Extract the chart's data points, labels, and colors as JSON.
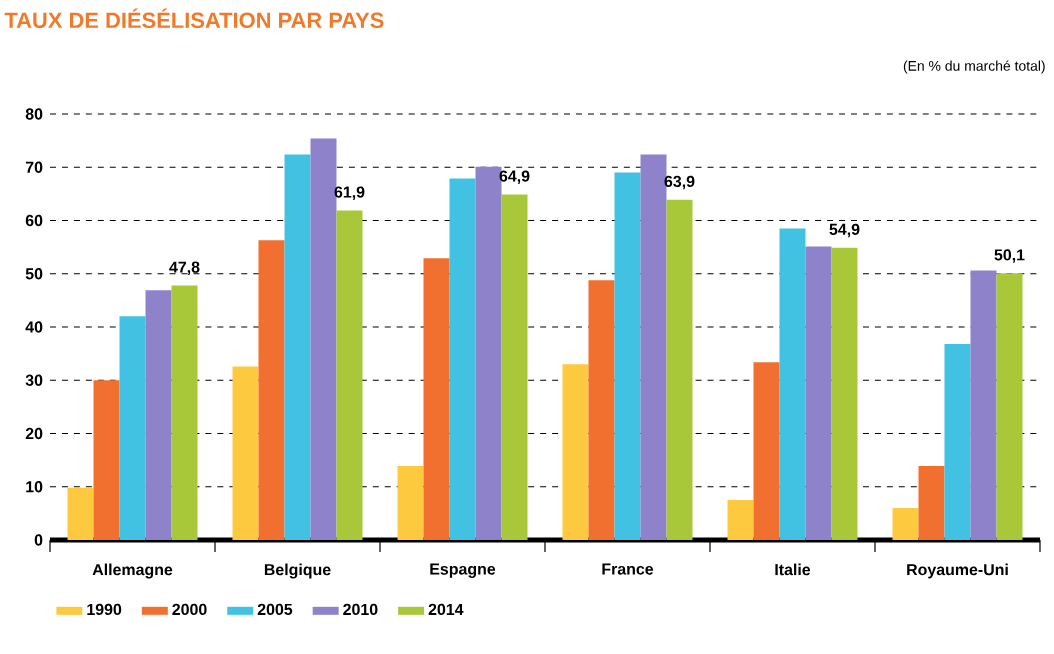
{
  "chart_data": {
    "type": "bar",
    "title": "TAUX DE DIÉSÉLISATION PAR PAYS",
    "subtitle": "(En % du marché total)",
    "categories": [
      "Allemagne",
      "Belgique",
      "Espagne",
      "France",
      "Italie",
      "Royaume-Uni"
    ],
    "series": [
      {
        "name": "1990",
        "color": "#fdc93f",
        "values": [
          9.8,
          32.6,
          13.9,
          33.0,
          7.5,
          6.0
        ]
      },
      {
        "name": "2000",
        "color": "#f1702f",
        "values": [
          30.0,
          56.3,
          52.9,
          48.8,
          33.4,
          13.9
        ]
      },
      {
        "name": "2005",
        "color": "#42c2e2",
        "values": [
          42.0,
          72.4,
          67.9,
          69.0,
          58.5,
          36.8
        ]
      },
      {
        "name": "2010",
        "color": "#8e83cb",
        "values": [
          46.9,
          75.4,
          70.1,
          72.4,
          55.1,
          50.6
        ]
      },
      {
        "name": "2014",
        "color": "#a8c83a",
        "values": [
          47.8,
          61.9,
          64.9,
          63.9,
          54.9,
          50.1
        ],
        "value_labels": [
          "47,8",
          "61,9",
          "64,9",
          "63,9",
          "54,9",
          "50,1"
        ]
      }
    ],
    "ylim": [
      0,
      80
    ],
    "yticks": [
      0,
      10,
      20,
      30,
      40,
      50,
      60,
      70,
      80
    ],
    "grid": "y",
    "legend": "bottom"
  }
}
